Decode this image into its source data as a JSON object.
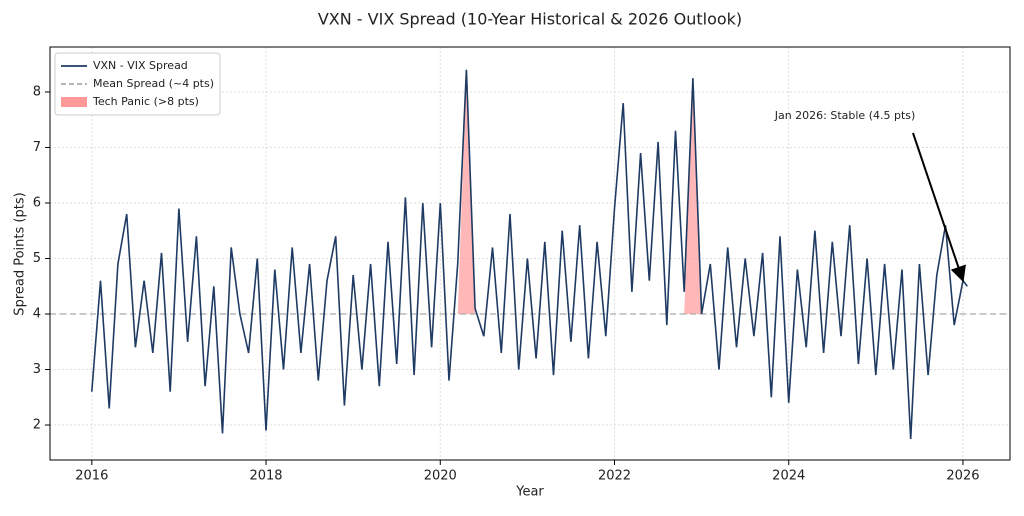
{
  "chart_data": {
    "type": "line",
    "title": "VXN - VIX Spread (10-Year Historical & 2026 Outlook)",
    "x_label": "Year",
    "y_label": "Spread Points (pts)",
    "x": [
      2016.0,
      2016.1,
      2016.2,
      2016.3,
      2016.4,
      2016.5,
      2016.6,
      2016.7,
      2016.8,
      2016.9,
      2017.0,
      2017.1,
      2017.2,
      2017.3,
      2017.4,
      2017.5,
      2017.6,
      2017.7,
      2017.8,
      2017.9,
      2018.0,
      2018.1,
      2018.2,
      2018.3,
      2018.4,
      2018.5,
      2018.6,
      2018.7,
      2018.8,
      2018.9,
      2019.0,
      2019.1,
      2019.2,
      2019.3,
      2019.4,
      2019.5,
      2019.6,
      2019.7,
      2019.8,
      2019.9,
      2020.0,
      2020.1,
      2020.2,
      2020.3,
      2020.4,
      2020.5,
      2020.6,
      2020.7,
      2020.8,
      2020.9,
      2021.0,
      2021.1,
      2021.2,
      2021.3,
      2021.4,
      2021.5,
      2021.6,
      2021.7,
      2021.8,
      2021.9,
      2022.0,
      2022.1,
      2022.2,
      2022.3,
      2022.4,
      2022.5,
      2022.6,
      2022.7,
      2022.8,
      2022.9,
      2023.0,
      2023.1,
      2023.2,
      2023.3,
      2023.4,
      2023.5,
      2023.6,
      2023.7,
      2023.8,
      2023.9,
      2024.0,
      2024.1,
      2024.2,
      2024.3,
      2024.4,
      2024.5,
      2024.6,
      2024.7,
      2024.8,
      2024.9,
      2025.0,
      2025.1,
      2025.2,
      2025.3,
      2025.4,
      2025.5,
      2025.6,
      2025.7,
      2025.8,
      2025.9,
      2026.0,
      2026.05
    ],
    "series": [
      {
        "name": "VXN - VIX Spread",
        "color": "#1f3b63",
        "values": [
          2.6,
          4.6,
          2.3,
          4.9,
          5.8,
          3.4,
          4.6,
          3.3,
          5.1,
          2.6,
          5.9,
          3.5,
          5.4,
          2.7,
          4.5,
          1.85,
          5.2,
          4.0,
          3.3,
          5.0,
          1.9,
          4.8,
          3.0,
          5.2,
          3.3,
          4.9,
          2.8,
          4.6,
          5.4,
          2.35,
          4.7,
          3.0,
          4.9,
          2.7,
          5.3,
          3.1,
          6.1,
          2.9,
          6.0,
          3.4,
          6.0,
          2.8,
          4.9,
          8.4,
          4.1,
          3.6,
          5.2,
          3.3,
          5.8,
          3.0,
          5.0,
          3.2,
          5.3,
          2.9,
          5.5,
          3.5,
          5.6,
          3.2,
          5.3,
          3.6,
          5.9,
          7.8,
          4.4,
          6.9,
          4.6,
          7.1,
          3.8,
          7.3,
          4.4,
          8.25,
          4.0,
          4.9,
          3.0,
          5.2,
          3.4,
          5.0,
          3.6,
          5.1,
          2.5,
          5.4,
          2.4,
          4.8,
          3.4,
          5.5,
          3.3,
          5.3,
          3.6,
          5.6,
          3.1,
          5.0,
          2.9,
          4.9,
          3.0,
          4.8,
          1.75,
          4.9,
          2.9,
          4.7,
          5.6,
          3.8,
          4.6,
          4.5
        ]
      }
    ],
    "mean": {
      "name": "Mean Spread (~4 pts)",
      "value": 4,
      "color": "#aaaaaa"
    },
    "highlight": {
      "name": "Tech Panic (>8 pts)",
      "threshold": 8,
      "color": "#ff9999"
    },
    "annotation": {
      "text": "Jan 2026: Stable (4.5 pts)",
      "x": 2026.0,
      "y": 4.6
    },
    "xlim": [
      2015.52,
      2026.54
    ],
    "xticks": [
      2016,
      2018,
      2020,
      2022,
      2024,
      2026
    ],
    "ylim": [
      1.37,
      8.81
    ],
    "yticks": [
      2,
      3,
      4,
      5,
      6,
      7,
      8
    ],
    "grid": true,
    "legend": "upper-left"
  }
}
